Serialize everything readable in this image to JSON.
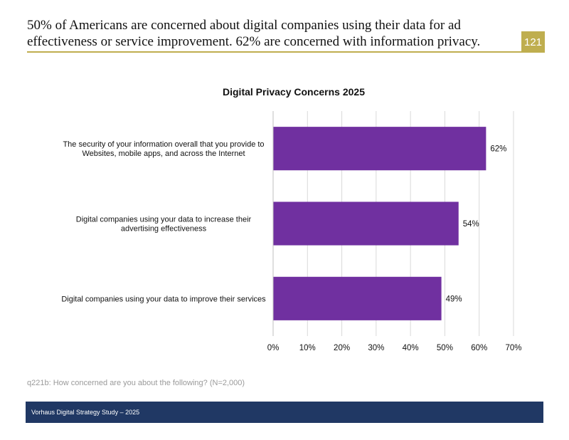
{
  "slide": {
    "headline_line1": "50% of Americans are concerned about digital companies using their data for ad",
    "headline_line2": "effectiveness or service improvement. 62% are concerned with information privacy.",
    "page_number": "121",
    "footnote": "q221b: How concerned are you about the following? (N=2,000)",
    "footer": "Vorhaus Digital Strategy Study – 2025"
  },
  "colors": {
    "bar": "#7030a0",
    "accent": "#bfae4f",
    "footer_bg": "#203864",
    "grid": "#d9d9d9"
  },
  "chart_data": {
    "type": "bar",
    "orientation": "horizontal",
    "title": "Digital Privacy Concerns 2025",
    "categories": [
      [
        "The security of your information overall that you provide to",
        "Websites, mobile apps, and across the Internet"
      ],
      [
        "Digital companies using your data to increase their",
        "advertising effectiveness"
      ],
      [
        "Digital companies using your data to improve their services"
      ]
    ],
    "values": [
      62,
      54,
      49
    ],
    "data_labels": [
      "62%",
      "54%",
      "49%"
    ],
    "xlim": [
      0,
      70
    ],
    "xticks": [
      0,
      10,
      20,
      30,
      40,
      50,
      60,
      70
    ],
    "xtick_labels": [
      "0%",
      "10%",
      "20%",
      "30%",
      "40%",
      "50%",
      "60%",
      "70%"
    ],
    "grid": true,
    "legend": "none"
  }
}
